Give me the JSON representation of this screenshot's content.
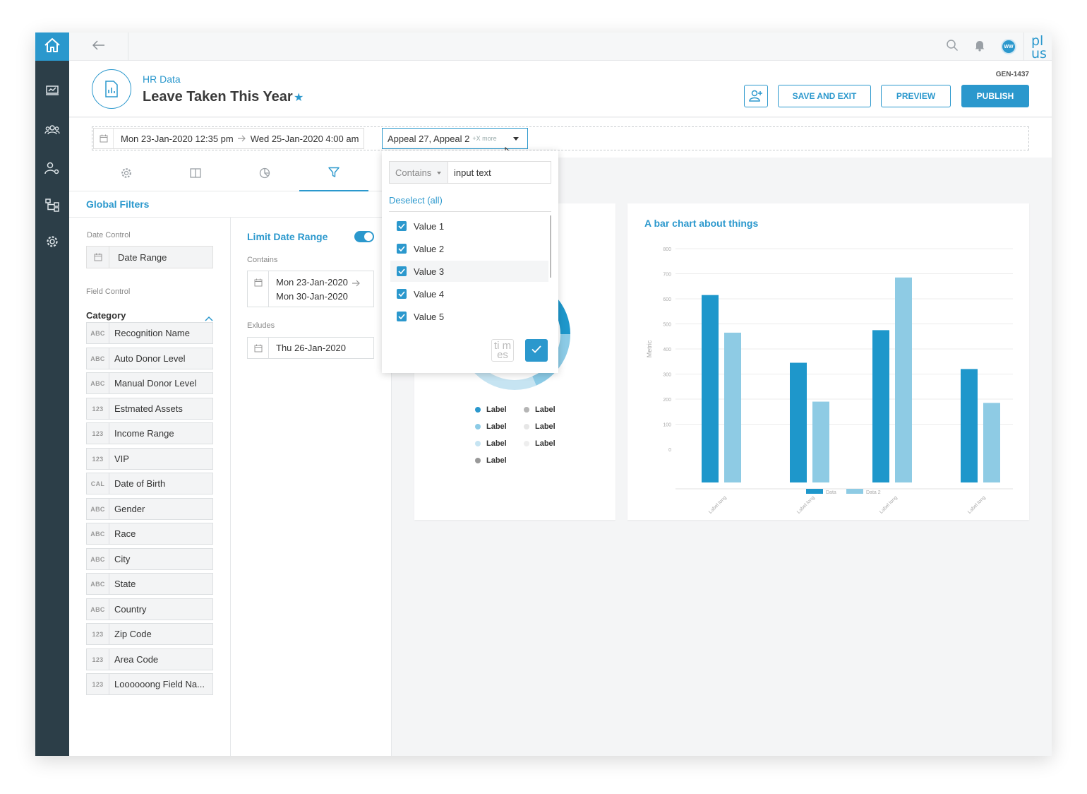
{
  "topbar": {
    "avatar_initials": "WW",
    "logo_text": "pl us"
  },
  "header": {
    "breadcrumb": "HR Data",
    "title": "Leave Taken This Year",
    "report_id": "GEN-1437",
    "save_exit_label": "SAVE AND EXIT",
    "preview_label": "PREVIEW",
    "publish_label": "PUBLISH"
  },
  "filterbar": {
    "date_start": "Mon 23-Jan-2020 12:35 pm",
    "date_end": "Wed 25-Jan-2020 4:00 am",
    "appeal_value": "Appeal 27, Appeal 2",
    "appeal_more": "+X more"
  },
  "dropdown": {
    "operator": "Contains",
    "search_value": "input text",
    "deselect_label": "Deselect (all)",
    "cancel_glyph": "ti m es",
    "options": [
      {
        "label": "Value 1",
        "checked": true
      },
      {
        "label": "Value 2",
        "checked": true
      },
      {
        "label": "Value 3",
        "checked": true
      },
      {
        "label": "Value 4",
        "checked": true
      },
      {
        "label": "Value 5",
        "checked": true
      }
    ]
  },
  "sidebar": {
    "tabs": [
      "settings",
      "layout",
      "charts",
      "filters"
    ],
    "active_tab": "filters",
    "heading": "Global Filters",
    "date_control_label": "Date Control",
    "date_range_label": "Date Range",
    "field_control_label": "Field Control",
    "category_label": "Category",
    "fields": [
      {
        "type": "ABC",
        "name": "Recognition Name"
      },
      {
        "type": "ABC",
        "name": "Auto Donor Level"
      },
      {
        "type": "ABC",
        "name": "Manual Donor Level"
      },
      {
        "type": "123",
        "name": "Estmated Assets"
      },
      {
        "type": "123",
        "name": "Income Range"
      },
      {
        "type": "123",
        "name": "VIP"
      },
      {
        "type": "CAL",
        "name": "Date of Birth"
      },
      {
        "type": "ABC",
        "name": "Gender"
      },
      {
        "type": "ABC",
        "name": "Race"
      },
      {
        "type": "ABC",
        "name": "City"
      },
      {
        "type": "ABC",
        "name": "State"
      },
      {
        "type": "ABC",
        "name": "Country"
      },
      {
        "type": "123",
        "name": "Zip Code"
      },
      {
        "type": "123",
        "name": "Area Code"
      },
      {
        "type": "123",
        "name": "Loooooong Field Na..."
      }
    ],
    "limit_date_range_label": "Limit Date Range",
    "limit_date_range_on": true,
    "contains_label": "Contains",
    "contains_start": "Mon 23-Jan-2020",
    "contains_end": "Mon 30-Jan-2020",
    "excludes_label": "Exludes",
    "excludes_date": "Thu 26-Jan-2020"
  },
  "donut_legend": [
    {
      "label": "Label",
      "color": "#2b98cd"
    },
    {
      "label": "Label",
      "color": "#b5b5b5"
    },
    {
      "label": "Label",
      "color": "#8ccbe6"
    },
    {
      "label": "Label",
      "color": "#e6e6e6"
    },
    {
      "label": "Label",
      "color": "#c6e4f2"
    },
    {
      "label": "Label",
      "color": "#eeeeee"
    },
    {
      "label": "Label",
      "color": "#999999"
    }
  ],
  "chart_data": {
    "type": "bar",
    "title": "A bar chart about things",
    "ylabel": "Metric",
    "xlabel": "",
    "ylim": [
      0,
      800
    ],
    "yticks": [
      0,
      100,
      200,
      300,
      400,
      500,
      600,
      700,
      800
    ],
    "categories": [
      "Label long",
      "Label long",
      "Label long",
      "Label long"
    ],
    "series": [
      {
        "name": "Data",
        "color": "#1e97cb",
        "values": [
          615,
          345,
          475,
          320
        ]
      },
      {
        "name": "Data 2",
        "color": "#8ecbe4",
        "values": [
          465,
          190,
          685,
          185
        ]
      }
    ],
    "legend_position": "bottom"
  }
}
